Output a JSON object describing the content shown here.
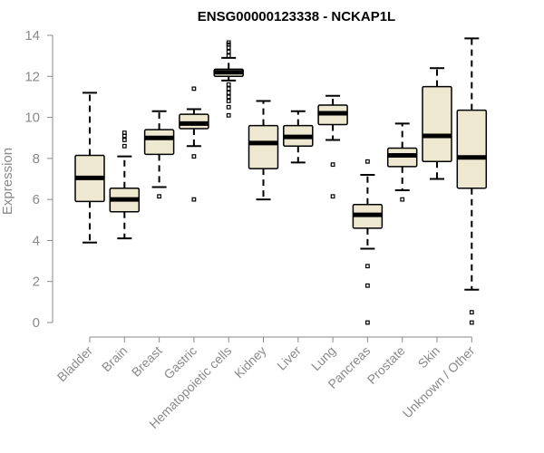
{
  "colors": {
    "box_fill": "#eee8d0",
    "axis": "#8a8a8a",
    "stroke": "#000000"
  },
  "chart_data": {
    "type": "box",
    "title": "ENSG00000123338 - NCKAP1L",
    "xlabel": "",
    "ylabel": "Expression",
    "ylim": [
      0,
      14
    ],
    "yticks": [
      0,
      2,
      4,
      6,
      8,
      10,
      12,
      14
    ],
    "categories": [
      "Bladder",
      "Brain",
      "Breast",
      "Gastric",
      "Hematopoietic cells",
      "Kidney",
      "Liver",
      "Lung",
      "Pancreas",
      "Prostate",
      "Skin",
      "Unknown / Other"
    ],
    "boxes": [
      {
        "min": 3.9,
        "q1": 5.9,
        "median": 7.05,
        "q3": 8.15,
        "max": 11.2,
        "outliers": []
      },
      {
        "min": 4.1,
        "q1": 5.4,
        "median": 6.0,
        "q3": 6.55,
        "max": 8.1,
        "outliers": [
          8.6,
          8.9,
          9.1,
          9.25
        ]
      },
      {
        "min": 6.6,
        "q1": 8.2,
        "median": 9.0,
        "q3": 9.4,
        "max": 10.3,
        "outliers": [
          6.15
        ]
      },
      {
        "min": 8.6,
        "q1": 9.45,
        "median": 9.7,
        "q3": 10.15,
        "max": 10.4,
        "outliers": [
          6.0,
          8.1,
          11.4
        ]
      },
      {
        "min": 11.8,
        "q1": 12.0,
        "median": 12.2,
        "q3": 12.35,
        "max": 12.9,
        "outliers": [
          10.1,
          10.5,
          10.8,
          11.0,
          11.2,
          11.4,
          11.6,
          13.0,
          13.2,
          13.4,
          13.55,
          13.65
        ]
      },
      {
        "min": 6.0,
        "q1": 7.5,
        "median": 8.75,
        "q3": 9.6,
        "max": 10.8,
        "outliers": []
      },
      {
        "min": 7.8,
        "q1": 8.6,
        "median": 9.05,
        "q3": 9.6,
        "max": 10.3,
        "outliers": []
      },
      {
        "min": 8.9,
        "q1": 9.65,
        "median": 10.2,
        "q3": 10.6,
        "max": 11.05,
        "outliers": [
          6.15,
          7.7
        ]
      },
      {
        "min": 3.6,
        "q1": 4.6,
        "median": 5.25,
        "q3": 5.75,
        "max": 7.2,
        "outliers": [
          0.0,
          1.8,
          2.75,
          7.85
        ]
      },
      {
        "min": 6.45,
        "q1": 7.6,
        "median": 8.15,
        "q3": 8.5,
        "max": 9.7,
        "outliers": [
          6.0
        ]
      },
      {
        "min": 7.0,
        "q1": 7.85,
        "median": 9.1,
        "q3": 11.5,
        "max": 12.4,
        "outliers": []
      },
      {
        "min": 1.6,
        "q1": 6.55,
        "median": 8.05,
        "q3": 10.35,
        "max": 13.85,
        "outliers": [
          0.0,
          0.5
        ]
      }
    ]
  }
}
